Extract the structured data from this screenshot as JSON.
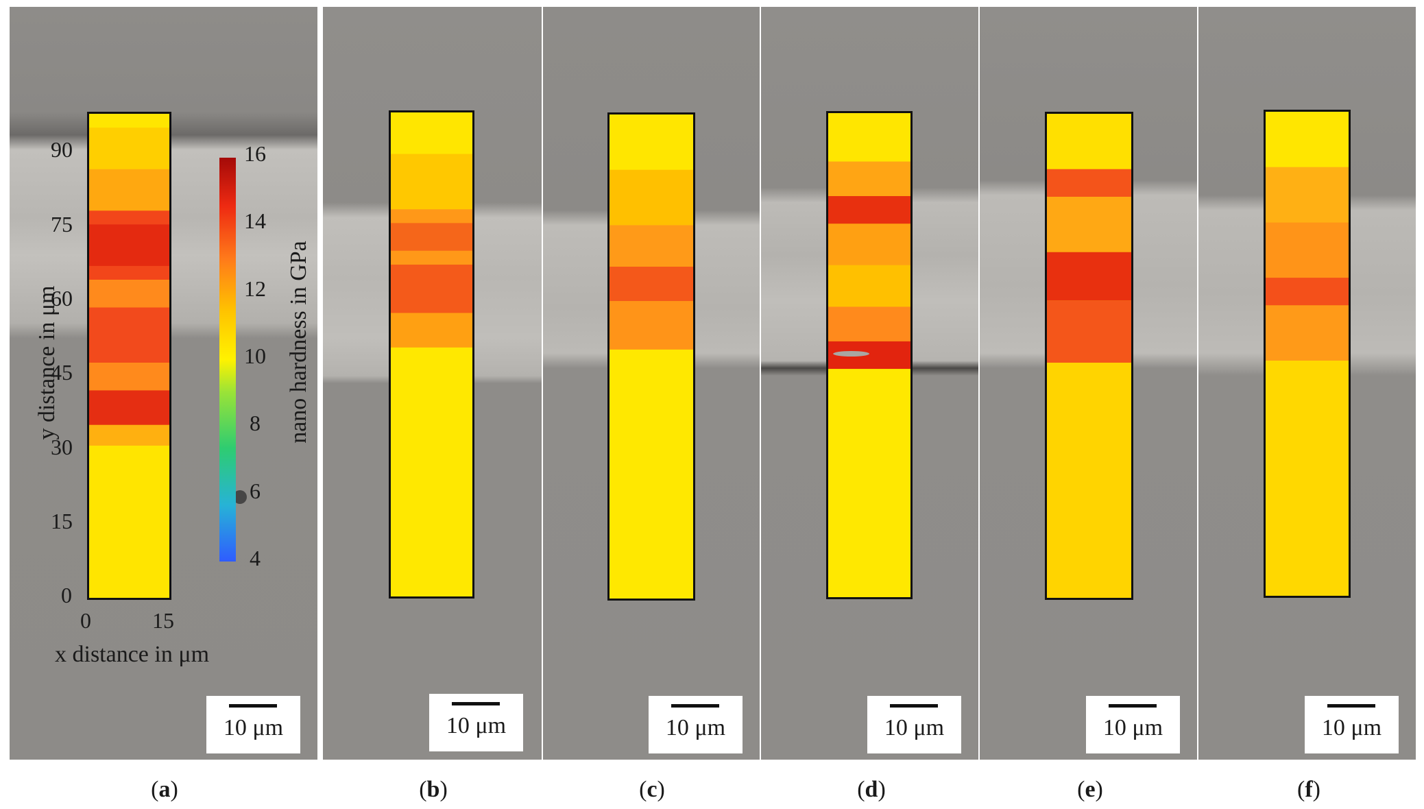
{
  "panels": [
    {
      "id": "a",
      "caption_letter": "a",
      "scale_label": "10 μm"
    },
    {
      "id": "b",
      "caption_letter": "b",
      "scale_label": "10 μm"
    },
    {
      "id": "c",
      "caption_letter": "c",
      "scale_label": "10 μm"
    },
    {
      "id": "d",
      "caption_letter": "d",
      "scale_label": "10 μm"
    },
    {
      "id": "e",
      "caption_letter": "e",
      "scale_label": "10 μm"
    },
    {
      "id": "f",
      "caption_letter": "f",
      "scale_label": "10 μm"
    }
  ],
  "axes": {
    "y_label": "y distance in μm",
    "y_ticks": [
      "90",
      "75",
      "60",
      "45",
      "30",
      "15",
      "0"
    ],
    "x_label": "x distance in μm",
    "x_ticks": [
      "0",
      "15"
    ]
  },
  "colorbar": {
    "label": "nano hardness in GPa",
    "ticks": [
      "16",
      "14",
      "12",
      "10",
      "8",
      "6",
      "4"
    ],
    "range": [
      4,
      16
    ]
  },
  "colors": {
    "background_gray": "#8f8d8a",
    "band_light": "#bdbbb7",
    "low": "#ffef00",
    "mid": "#ffc000",
    "high": "#ff8a1c",
    "peak": "#e8220f",
    "frame": "#111111"
  }
}
